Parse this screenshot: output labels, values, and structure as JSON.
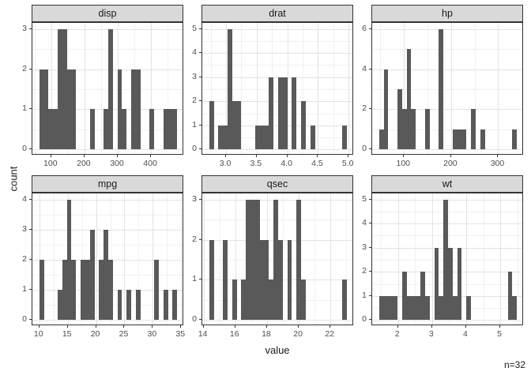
{
  "figure": {
    "y_axis_title": "count",
    "x_axis_title": "value",
    "caption": "n=32"
  },
  "colors": {
    "bar_fill": "#595959",
    "strip_background": "#D9D9D9",
    "panel_border": "#333333",
    "grid_major": "#E3E3E3",
    "grid_minor": "#F1F1F1",
    "axis_text": "#4D4D4D",
    "text": "#1a1a1a"
  },
  "chart_data": {
    "type": "bar",
    "subtype": "faceted-histograms",
    "facet_layout": "2 rows x 3 cols",
    "n_observations": 32,
    "shared_y_label": "count",
    "shared_x_label": "value",
    "annotation": "n=32",
    "facets": [
      {
        "label": "disp",
        "bin_start": 64.19,
        "bin_width": 13.824,
        "counts": [
          2,
          2,
          1,
          1,
          3,
          3,
          2,
          2,
          0,
          0,
          0,
          1,
          0,
          0,
          1,
          3,
          0,
          2,
          1,
          0,
          2,
          2,
          0,
          0,
          1,
          0,
          0,
          1,
          1,
          1
        ],
        "x_axis": {
          "min": 43.45,
          "max": 499.65,
          "major_ticks": [
            100,
            200,
            300,
            400
          ],
          "minor_ticks": [
            50,
            150,
            250,
            350,
            450
          ]
        },
        "y_axis": {
          "max_count": 3,
          "major_ticks": [
            0,
            1,
            2,
            3
          ],
          "minor_ticks": [
            0.5,
            1.5,
            2.5
          ]
        }
      },
      {
        "label": "drat",
        "bin_start": 2.725,
        "bin_width": 0.075,
        "counts": [
          2,
          0,
          1,
          1,
          5,
          2,
          2,
          0,
          0,
          0,
          1,
          1,
          1,
          3,
          0,
          3,
          3,
          0,
          3,
          0,
          2,
          0,
          1,
          0,
          0,
          0,
          0,
          0,
          0,
          1
        ],
        "x_axis": {
          "min": 2.6125,
          "max": 5.0875,
          "major_ticks": [
            3.0,
            3.5,
            4.0,
            4.5,
            5.0
          ],
          "major_tick_labels": [
            "3.0",
            "3.5",
            "4.0",
            "4.5",
            "5.0"
          ],
          "minor_ticks": [
            2.75,
            3.25,
            3.75,
            4.25,
            4.75
          ]
        },
        "y_axis": {
          "max_count": 5,
          "major_ticks": [
            0,
            1,
            2,
            3,
            4,
            5
          ],
          "minor_ticks": [
            0.5,
            1.5,
            2.5,
            3.5,
            4.5
          ]
        }
      },
      {
        "label": "hp",
        "bin_start": 47.12,
        "bin_width": 9.7586,
        "counts": [
          1,
          4,
          0,
          0,
          3,
          2,
          5,
          2,
          0,
          0,
          2,
          0,
          0,
          6,
          0,
          0,
          1,
          1,
          1,
          0,
          2,
          0,
          1,
          0,
          0,
          0,
          0,
          0,
          0,
          1
        ],
        "x_axis": {
          "min": 32.48,
          "max": 354.52,
          "major_ticks": [
            100,
            200,
            300
          ],
          "minor_ticks": [
            50,
            150,
            250,
            350
          ]
        },
        "y_axis": {
          "max_count": 6,
          "major_ticks": [
            0,
            2,
            4,
            6
          ],
          "minor_ticks": [
            1,
            3,
            5
          ]
        }
      },
      {
        "label": "mpg",
        "bin_start": 9.995,
        "bin_width": 0.8103,
        "counts": [
          2,
          0,
          0,
          0,
          1,
          2,
          4,
          2,
          0,
          2,
          2,
          3,
          0,
          2,
          3,
          2,
          0,
          1,
          0,
          1,
          0,
          1,
          0,
          0,
          0,
          2,
          0,
          1,
          0,
          1
        ],
        "x_axis": {
          "min": 8.78,
          "max": 35.52,
          "major_ticks": [
            10,
            15,
            20,
            25,
            30,
            35
          ],
          "minor_ticks": [
            12.5,
            17.5,
            22.5,
            27.5,
            32.5
          ]
        },
        "y_axis": {
          "max_count": 4,
          "major_ticks": [
            0,
            1,
            2,
            3,
            4
          ],
          "minor_ticks": [
            0.5,
            1.5,
            2.5,
            3.5
          ]
        }
      },
      {
        "label": "qsec",
        "bin_start": 14.355,
        "bin_width": 0.2897,
        "counts": [
          2,
          0,
          0,
          2,
          0,
          1,
          0,
          1,
          3,
          3,
          3,
          2,
          2,
          1,
          3,
          2,
          0,
          2,
          0,
          3,
          1,
          0,
          0,
          0,
          0,
          0,
          0,
          0,
          0,
          1
        ],
        "x_axis": {
          "min": 13.92,
          "max": 23.48,
          "major_ticks": [
            14,
            16,
            18,
            20,
            22
          ],
          "minor_ticks": [
            15,
            17,
            19,
            21,
            23
          ]
        },
        "y_axis": {
          "max_count": 3,
          "major_ticks": [
            0,
            1,
            2,
            3
          ],
          "minor_ticks": [
            0.5,
            1.5,
            2.5
          ]
        }
      },
      {
        "label": "wt",
        "bin_start": 1.4456,
        "bin_width": 0.13486,
        "counts": [
          1,
          1,
          1,
          1,
          0,
          2,
          1,
          1,
          1,
          2,
          1,
          0,
          3,
          1,
          5,
          3,
          1,
          3,
          0,
          1,
          0,
          0,
          0,
          0,
          0,
          0,
          0,
          0,
          2,
          1
        ],
        "x_axis": {
          "min": 1.2433,
          "max": 5.6937,
          "major_ticks": [
            2,
            3,
            4,
            5
          ],
          "minor_ticks": [
            1.5,
            2.5,
            3.5,
            4.5,
            5.5
          ]
        },
        "y_axis": {
          "max_count": 5,
          "major_ticks": [
            0,
            1,
            2,
            3,
            4,
            5
          ],
          "minor_ticks": [
            0.5,
            1.5,
            2.5,
            3.5,
            4.5
          ]
        }
      }
    ]
  }
}
